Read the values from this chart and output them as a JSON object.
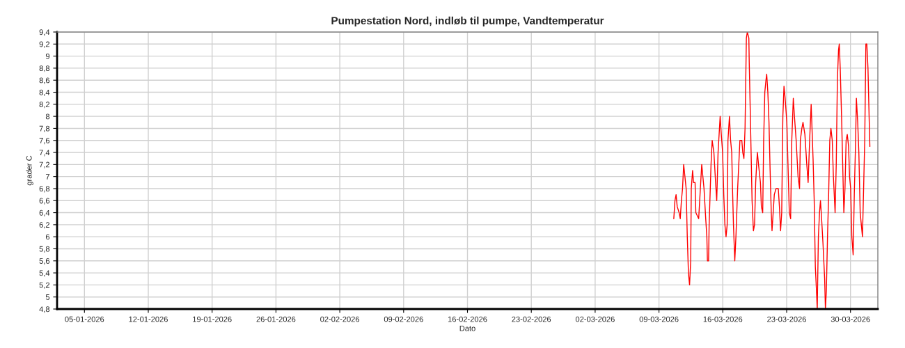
{
  "chart_data": {
    "type": "line",
    "title": "Pumpestation Nord, indløb til pumpe, Vandtemperatur",
    "xlabel": "Dato",
    "ylabel": "grader C",
    "x": [
      "2026-03-10T15:00",
      "2026-03-10T18:00",
      "2026-03-10T21:00",
      "2026-03-11T00:00",
      "2026-03-11T05:00",
      "2026-03-11T08:00",
      "2026-03-11T11:00",
      "2026-03-11T14:00",
      "2026-03-11T17:00",
      "2026-03-11T23:30",
      "2026-03-12T02:30",
      "2026-03-12T05:30",
      "2026-03-12T08:30",
      "2026-03-12T11:30",
      "2026-03-12T13:00",
      "2026-03-12T16:30",
      "2026-03-12T19:00",
      "2026-03-12T23:00",
      "2026-03-13T01:00",
      "2026-03-13T08:30",
      "2026-03-13T12:00",
      "2026-03-13T16:30",
      "2026-03-13T19:30",
      "2026-03-13T22:30",
      "2026-03-14T03:00",
      "2026-03-14T06:00",
      "2026-03-14T07:30",
      "2026-03-14T10:30",
      "2026-03-14T12:00",
      "2026-03-14T15:00",
      "2026-03-14T17:00",
      "2026-03-14T20:00",
      "2026-03-15T00:30",
      "2026-03-15T05:00",
      "2026-03-15T08:00",
      "2026-03-15T11:30",
      "2026-03-15T17:00",
      "2026-03-15T20:00",
      "2026-03-15T23:30",
      "2026-03-16T02:30",
      "2026-03-16T05:30",
      "2026-03-16T08:30",
      "2026-03-16T11:30",
      "2026-03-16T13:30",
      "2026-03-16T17:30",
      "2026-03-16T20:30",
      "2026-03-16T23:30",
      "2026-03-17T01:30",
      "2026-03-17T04:00",
      "2026-03-17T07:30",
      "2026-03-17T10:30",
      "2026-03-17T15:00",
      "2026-03-17T18:00",
      "2026-03-17T21:00",
      "2026-03-18T02:00",
      "2026-03-18T04:30",
      "2026-03-18T07:30",
      "2026-03-18T10:30",
      "2026-03-18T14:00",
      "2026-03-18T16:30",
      "2026-03-18T20:30",
      "2026-03-18T21:30",
      "2026-03-19T00:30",
      "2026-03-19T05:00",
      "2026-03-19T08:30",
      "2026-03-19T11:30",
      "2026-03-19T14:30",
      "2026-03-19T17:00",
      "2026-03-19T19:00",
      "2026-03-19T22:00",
      "2026-03-20T03:00",
      "2026-03-20T05:30",
      "2026-03-20T09:00",
      "2026-03-20T11:30",
      "2026-03-20T14:30",
      "2026-03-20T17:30",
      "2026-03-20T19:30",
      "2026-03-20T22:30",
      "2026-03-21T01:30",
      "2026-03-21T04:30",
      "2026-03-21T07:30",
      "2026-03-21T09:30",
      "2026-03-21T12:30",
      "2026-03-21T15:30",
      "2026-03-21T20:00",
      "2026-03-22T02:00",
      "2026-03-22T05:00",
      "2026-03-22T08:00",
      "2026-03-22T11:00",
      "2026-03-22T14:00",
      "2026-03-22T17:00",
      "2026-03-22T20:00",
      "2026-03-23T00:30",
      "2026-03-23T03:30",
      "2026-03-23T07:00",
      "2026-03-23T10:30",
      "2026-03-23T13:30",
      "2026-03-23T17:30",
      "2026-03-23T20:30",
      "2026-03-24T01:00",
      "2026-03-24T06:00",
      "2026-03-24T10:00",
      "2026-03-24T12:00",
      "2026-03-24T16:00",
      "2026-03-24T19:00",
      "2026-03-25T00:00",
      "2026-03-25T05:00",
      "2026-03-25T08:30",
      "2026-03-25T12:30",
      "2026-03-25T16:30",
      "2026-03-25T21:30",
      "2026-03-26T00:30",
      "2026-03-26T03:30",
      "2026-03-26T06:30",
      "2026-03-26T08:30",
      "2026-03-26T11:30",
      "2026-03-26T14:30",
      "2026-03-26T17:00",
      "2026-03-26T20:00",
      "2026-03-26T23:30",
      "2026-03-27T04:00",
      "2026-03-27T06:00",
      "2026-03-27T08:30",
      "2026-03-27T11:30",
      "2026-03-27T14:30",
      "2026-03-27T17:30",
      "2026-03-27T20:30",
      "2026-03-28T00:00",
      "2026-03-28T03:00",
      "2026-03-28T07:30",
      "2026-03-28T10:30",
      "2026-03-28T13:30",
      "2026-03-28T16:30",
      "2026-03-28T18:30",
      "2026-03-28T21:00",
      "2026-03-29T00:30",
      "2026-03-29T03:30",
      "2026-03-29T06:30",
      "2026-03-29T09:30",
      "2026-03-29T12:30",
      "2026-03-29T15:30",
      "2026-03-29T19:00",
      "2026-03-29T21:30",
      "2026-03-30T00:30",
      "2026-03-30T03:30",
      "2026-03-30T07:00",
      "2026-03-30T10:00",
      "2026-03-30T13:30",
      "2026-03-30T15:30",
      "2026-03-30T19:00",
      "2026-03-30T22:00",
      "2026-03-31T01:30",
      "2026-03-31T04:30",
      "2026-03-31T07:30",
      "2026-03-31T10:30",
      "2026-03-31T13:30",
      "2026-03-31T16:30",
      "2026-03-31T19:00",
      "2026-03-31T22:00",
      "2026-04-01T01:00",
      "2026-04-01T03:00"
    ],
    "series": [
      {
        "color": "#ff0000",
        "values": [
          6.3,
          6.6,
          6.7,
          6.5,
          6.4,
          6.3,
          6.6,
          6.8,
          7.2,
          6.8,
          6.0,
          5.4,
          5.2,
          5.6,
          6.8,
          7.1,
          6.9,
          6.9,
          6.4,
          6.3,
          6.7,
          7.2,
          7.0,
          6.8,
          6.3,
          6.0,
          5.6,
          5.6,
          6.2,
          6.8,
          7.2,
          7.6,
          7.4,
          6.9,
          6.6,
          7.4,
          8.0,
          7.7,
          7.4,
          6.7,
          6.2,
          6.0,
          6.2,
          7.6,
          8.0,
          7.6,
          7.4,
          6.8,
          6.2,
          5.6,
          6.0,
          6.8,
          7.2,
          7.6,
          7.6,
          7.4,
          7.3,
          7.8,
          9.3,
          9.4,
          9.3,
          8.9,
          8.0,
          6.6,
          6.1,
          6.2,
          6.9,
          7.2,
          7.4,
          7.2,
          6.9,
          6.5,
          6.4,
          7.6,
          8.4,
          8.6,
          8.7,
          8.4,
          7.9,
          7.1,
          6.4,
          6.1,
          6.4,
          6.7,
          6.8,
          6.8,
          6.5,
          6.1,
          6.4,
          8.0,
          8.5,
          8.3,
          7.9,
          7.2,
          6.4,
          6.3,
          7.6,
          8.3,
          8.0,
          7.6,
          7.0,
          6.8,
          7.6,
          7.8,
          7.9,
          7.7,
          7.2,
          6.9,
          7.6,
          8.2,
          7.3,
          6.6,
          5.5,
          5.1,
          4.8,
          6.0,
          6.4,
          6.6,
          6.3,
          5.9,
          5.3,
          4.8,
          5.1,
          6.0,
          6.7,
          7.6,
          7.8,
          7.6,
          7.0,
          6.4,
          7.2,
          8.6,
          9.1,
          9.2,
          8.8,
          8.0,
          7.2,
          6.4,
          6.8,
          7.6,
          7.7,
          7.5,
          7.0,
          6.8,
          6.0,
          5.7,
          6.7,
          7.6,
          8.3,
          7.9,
          7.4,
          6.4,
          6.2,
          6.0,
          6.8,
          7.6,
          9.2,
          9.2,
          8.8,
          8.0,
          7.5
        ]
      }
    ],
    "xlim": [
      "2026-01-02",
      "2026-04-02"
    ],
    "xticks": [
      {
        "value": "2026-01-05",
        "label": "05-01-2026"
      },
      {
        "value": "2026-01-12",
        "label": "12-01-2026"
      },
      {
        "value": "2026-01-19",
        "label": "19-01-2026"
      },
      {
        "value": "2026-01-26",
        "label": "26-01-2026"
      },
      {
        "value": "2026-02-02",
        "label": "02-02-2026"
      },
      {
        "value": "2026-02-09",
        "label": "09-02-2026"
      },
      {
        "value": "2026-02-16",
        "label": "16-02-2026"
      },
      {
        "value": "2026-02-23",
        "label": "23-02-2026"
      },
      {
        "value": "2026-03-02",
        "label": "02-03-2026"
      },
      {
        "value": "2026-03-09",
        "label": "09-03-2026"
      },
      {
        "value": "2026-03-16",
        "label": "16-03-2026"
      },
      {
        "value": "2026-03-23",
        "label": "23-03-2026"
      },
      {
        "value": "2026-03-30",
        "label": "30-03-2026"
      }
    ],
    "ylim": [
      4.8,
      9.4
    ],
    "yticks": [
      {
        "value": 4.8,
        "label": "4,8"
      },
      5,
      {
        "value": 5.2,
        "label": "5,2"
      },
      {
        "value": 5.4,
        "label": "5,4"
      },
      {
        "value": 5.6,
        "label": "5,6"
      },
      {
        "value": 5.8,
        "label": "5,8"
      },
      6,
      {
        "value": 6.2,
        "label": "6,2"
      },
      {
        "value": 6.4,
        "label": "6,4"
      },
      {
        "value": 6.6,
        "label": "6,6"
      },
      {
        "value": 6.8,
        "label": "6,8"
      },
      7,
      {
        "value": 7.2,
        "label": "7,2"
      },
      {
        "value": 7.4,
        "label": "7,4"
      },
      {
        "value": 7.6,
        "label": "7,6"
      },
      {
        "value": 7.8,
        "label": "7,8"
      },
      8,
      {
        "value": 8.2,
        "label": "8,2"
      },
      {
        "value": 8.4,
        "label": "8,4"
      },
      {
        "value": 8.6,
        "label": "8,6"
      },
      {
        "value": 8.8,
        "label": "8,8"
      },
      9,
      {
        "value": 9.2,
        "label": "9,2"
      },
      {
        "value": 9.4,
        "label": "9,4"
      }
    ],
    "grid": true,
    "legend": false
  }
}
